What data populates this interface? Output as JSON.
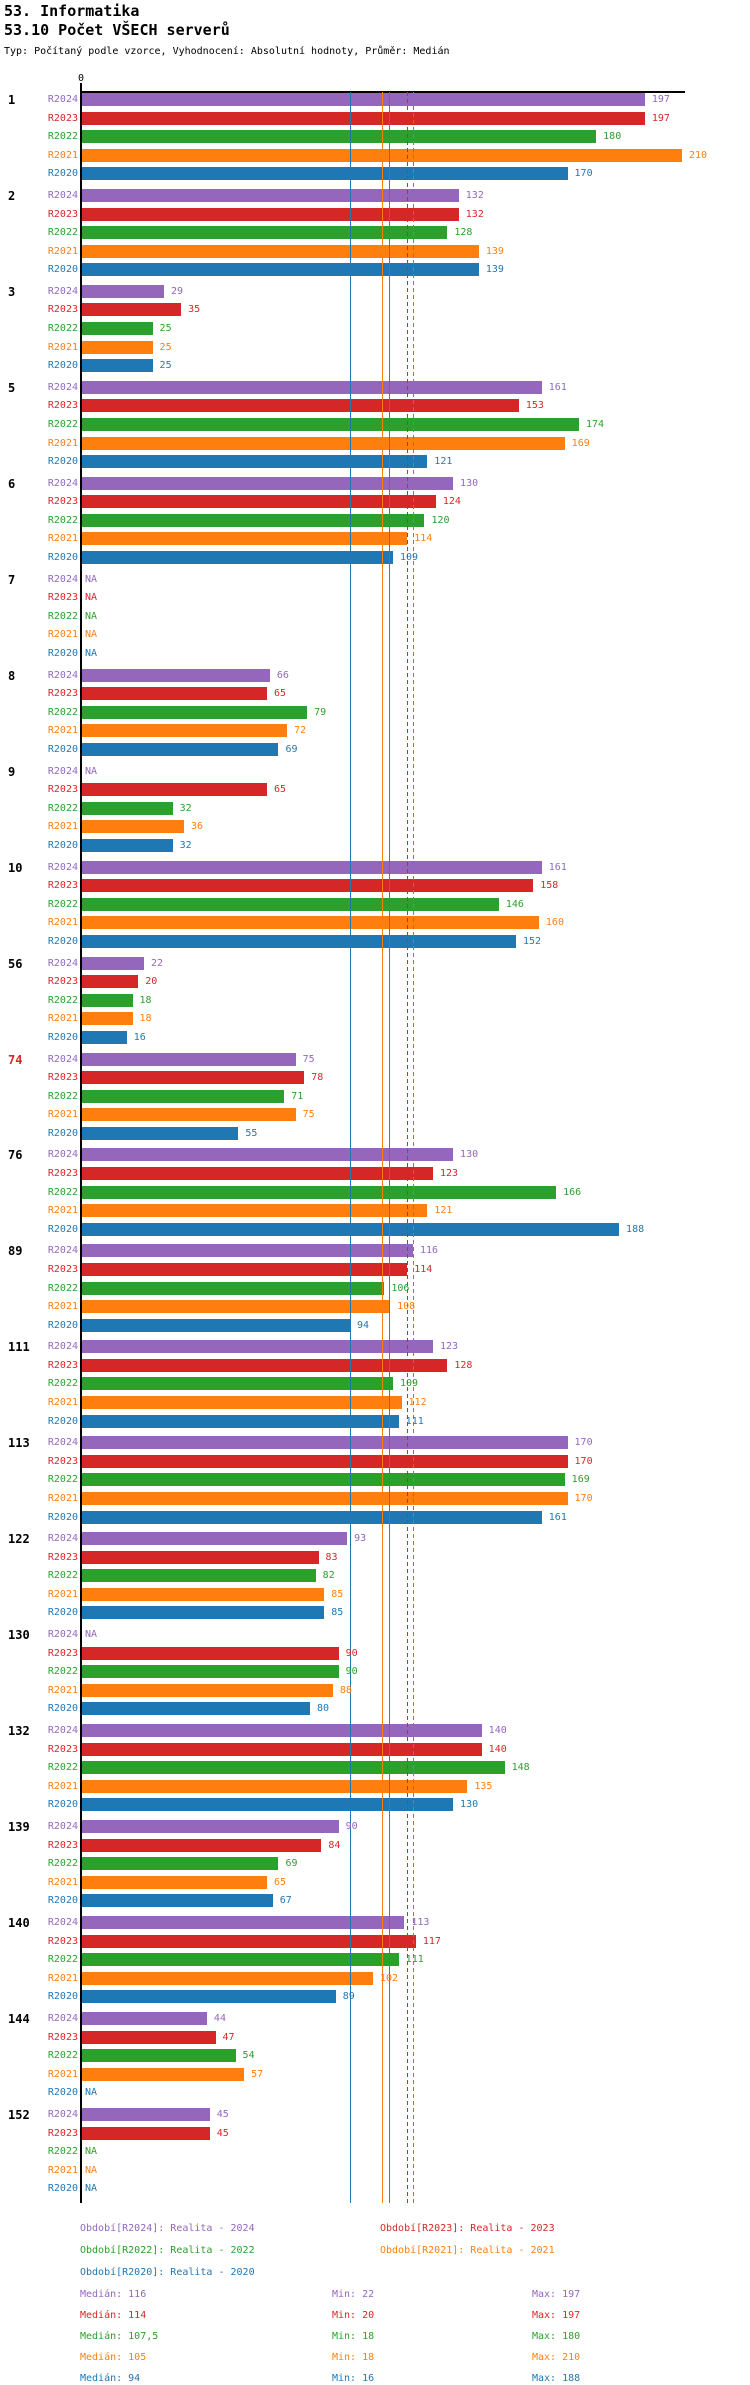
{
  "header": {
    "title": "53. Informatika",
    "subtitle": "53.10 Počet VŠECH serverů",
    "meta": "Typ: Počítaný podle vzorce, Vyhodnocení: Absolutní hodnoty, Průměr: Medián"
  },
  "chart_data": {
    "type": "bar",
    "orientation": "horizontal",
    "title": "53.10 Počet VŠECH serverů",
    "axis": {
      "x_min": 0,
      "x_max": 210,
      "origin_tick_label": "0",
      "grid": false
    },
    "legend_position": "bottom",
    "na_label": "NA",
    "series": [
      {
        "name": "R2024",
        "color": "#9467bd",
        "median": 116,
        "min": 22,
        "max": 197,
        "median_line_style": "dashed"
      },
      {
        "name": "R2023",
        "color": "#d62728",
        "median": 114,
        "min": 20,
        "max": 197,
        "median_line_style": "dashed"
      },
      {
        "name": "R2022",
        "color": "#2ca02c",
        "median": 107.5,
        "min": 18,
        "max": 180,
        "median_line_style": "solid"
      },
      {
        "name": "R2021",
        "color": "#ff7f0e",
        "median": 105,
        "min": 18,
        "max": 210,
        "median_line_style": "solid"
      },
      {
        "name": "R2020",
        "color": "#1f77b4",
        "median": 94,
        "min": 16,
        "max": 188,
        "median_line_style": "solid"
      }
    ],
    "groups": [
      {
        "label": "1",
        "label_color": "#000000",
        "values": [
          197,
          197,
          180,
          210,
          170
        ]
      },
      {
        "label": "2",
        "label_color": "#000000",
        "values": [
          132,
          132,
          128,
          139,
          139
        ]
      },
      {
        "label": "3",
        "label_color": "#000000",
        "values": [
          29,
          35,
          25,
          25,
          25
        ]
      },
      {
        "label": "5",
        "label_color": "#000000",
        "values": [
          161,
          153,
          174,
          169,
          121
        ]
      },
      {
        "label": "6",
        "label_color": "#000000",
        "values": [
          130,
          124,
          120,
          114,
          109
        ]
      },
      {
        "label": "7",
        "label_color": "#000000",
        "values": [
          null,
          null,
          null,
          null,
          null
        ]
      },
      {
        "label": "8",
        "label_color": "#000000",
        "values": [
          66,
          65,
          79,
          72,
          69
        ]
      },
      {
        "label": "9",
        "label_color": "#000000",
        "values": [
          null,
          65,
          32,
          36,
          32
        ]
      },
      {
        "label": "10",
        "label_color": "#000000",
        "values": [
          161,
          158,
          146,
          160,
          152
        ]
      },
      {
        "label": "56",
        "label_color": "#000000",
        "values": [
          22,
          20,
          18,
          18,
          16
        ]
      },
      {
        "label": "74",
        "label_color": "#d62728",
        "values": [
          75,
          78,
          71,
          75,
          55
        ]
      },
      {
        "label": "76",
        "label_color": "#000000",
        "values": [
          130,
          123,
          166,
          121,
          188
        ]
      },
      {
        "label": "89",
        "label_color": "#000000",
        "values": [
          116,
          114,
          106,
          108,
          94
        ]
      },
      {
        "label": "111",
        "label_color": "#000000",
        "values": [
          123,
          128,
          109,
          112,
          111
        ]
      },
      {
        "label": "113",
        "label_color": "#000000",
        "values": [
          170,
          170,
          169,
          170,
          161
        ]
      },
      {
        "label": "122",
        "label_color": "#000000",
        "values": [
          93,
          83,
          82,
          85,
          85
        ]
      },
      {
        "label": "130",
        "label_color": "#000000",
        "values": [
          null,
          90,
          90,
          88,
          80
        ]
      },
      {
        "label": "132",
        "label_color": "#000000",
        "values": [
          140,
          140,
          148,
          135,
          130
        ]
      },
      {
        "label": "139",
        "label_color": "#000000",
        "values": [
          90,
          84,
          69,
          65,
          67
        ]
      },
      {
        "label": "140",
        "label_color": "#000000",
        "values": [
          113,
          117,
          111,
          102,
          89
        ]
      },
      {
        "label": "144",
        "label_color": "#000000",
        "values": [
          44,
          47,
          54,
          57,
          null
        ]
      },
      {
        "label": "152",
        "label_color": "#000000",
        "values": [
          45,
          45,
          null,
          null,
          null
        ]
      }
    ]
  },
  "footer": {
    "legend": [
      {
        "label": "Období[R2024]: Realita - 2024",
        "color": "#9467bd"
      },
      {
        "label": "Období[R2023]: Realita - 2023",
        "color": "#d62728"
      },
      {
        "label": "Období[R2022]: Realita - 2022",
        "color": "#2ca02c"
      },
      {
        "label": "Období[R2021]: Realita - 2021",
        "color": "#ff7f0e"
      },
      {
        "label": "Období[R2020]: Realita - 2020",
        "color": "#1f77b4"
      }
    ],
    "stats": [
      {
        "median": "Medián: 116",
        "min": "Min: 22",
        "max": "Max: 197",
        "color": "#9467bd"
      },
      {
        "median": "Medián: 114",
        "min": "Min: 20",
        "max": "Max: 197",
        "color": "#d62728"
      },
      {
        "median": "Medián: 107,5",
        "min": "Min: 18",
        "max": "Max: 180",
        "color": "#2ca02c"
      },
      {
        "median": "Medián: 105",
        "min": "Min: 18",
        "max": "Max: 210",
        "color": "#ff7f0e"
      },
      {
        "median": "Medián: 94",
        "min": "Min: 16",
        "max": "Max: 188",
        "color": "#1f77b4"
      }
    ]
  }
}
